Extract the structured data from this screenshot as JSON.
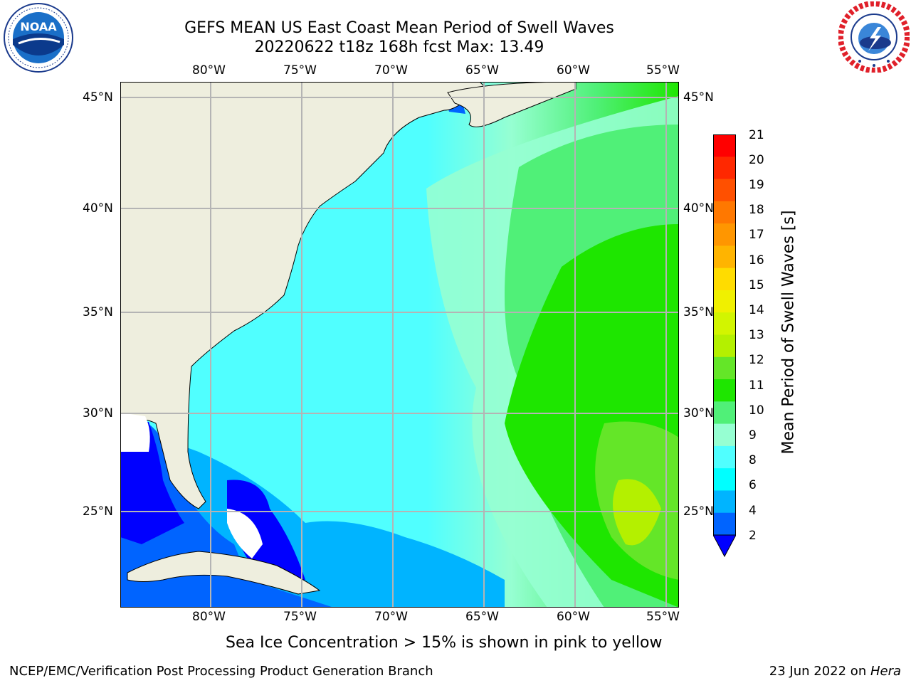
{
  "title": {
    "line1": "GEFS MEAN US East Coast Mean Period of Swell Waves",
    "line2": "20220622 t18z 168h fcst   Max: 13.49"
  },
  "axes": {
    "lon_labels": [
      "80°W",
      "75°W",
      "70°W",
      "65°W",
      "60°W",
      "55°W"
    ],
    "lat_labels": [
      "45°N",
      "40°N",
      "35°N",
      "30°N",
      "25°N"
    ]
  },
  "colorbar": {
    "label": "Mean Period of Swell Waves [s]",
    "ticks": [
      "21",
      "20",
      "19",
      "18",
      "17",
      "16",
      "15",
      "14",
      "13",
      "12",
      "11",
      "10",
      "9",
      "8",
      "6",
      "4",
      "2"
    ],
    "colors": [
      "#ff0000",
      "#ff2800",
      "#ff5000",
      "#ff7800",
      "#ff9600",
      "#ffb400",
      "#ffdc00",
      "#f0f000",
      "#d2f500",
      "#b4f000",
      "#64e628",
      "#1ee600",
      "#50f078",
      "#96ffd2",
      "#50ffff",
      "#00ffff",
      "#00b4ff",
      "#0064ff",
      "#0000ff"
    ]
  },
  "note": "Sea Ice Concentration > 15% is shown in pink to yellow",
  "footer": {
    "left": "NCEP/EMC/Verification Post Processing Product Generation Branch",
    "right_date": "23 Jun 2022 on ",
    "right_host": "Hera"
  },
  "logos": {
    "noaa_icon": "noaa-logo",
    "nws_icon": "nws-logo",
    "noaa_text": "NOAA"
  },
  "map_colors": {
    "land": "#eeeede",
    "missing": "#ffffff",
    "grid": "#b4b4b4"
  }
}
